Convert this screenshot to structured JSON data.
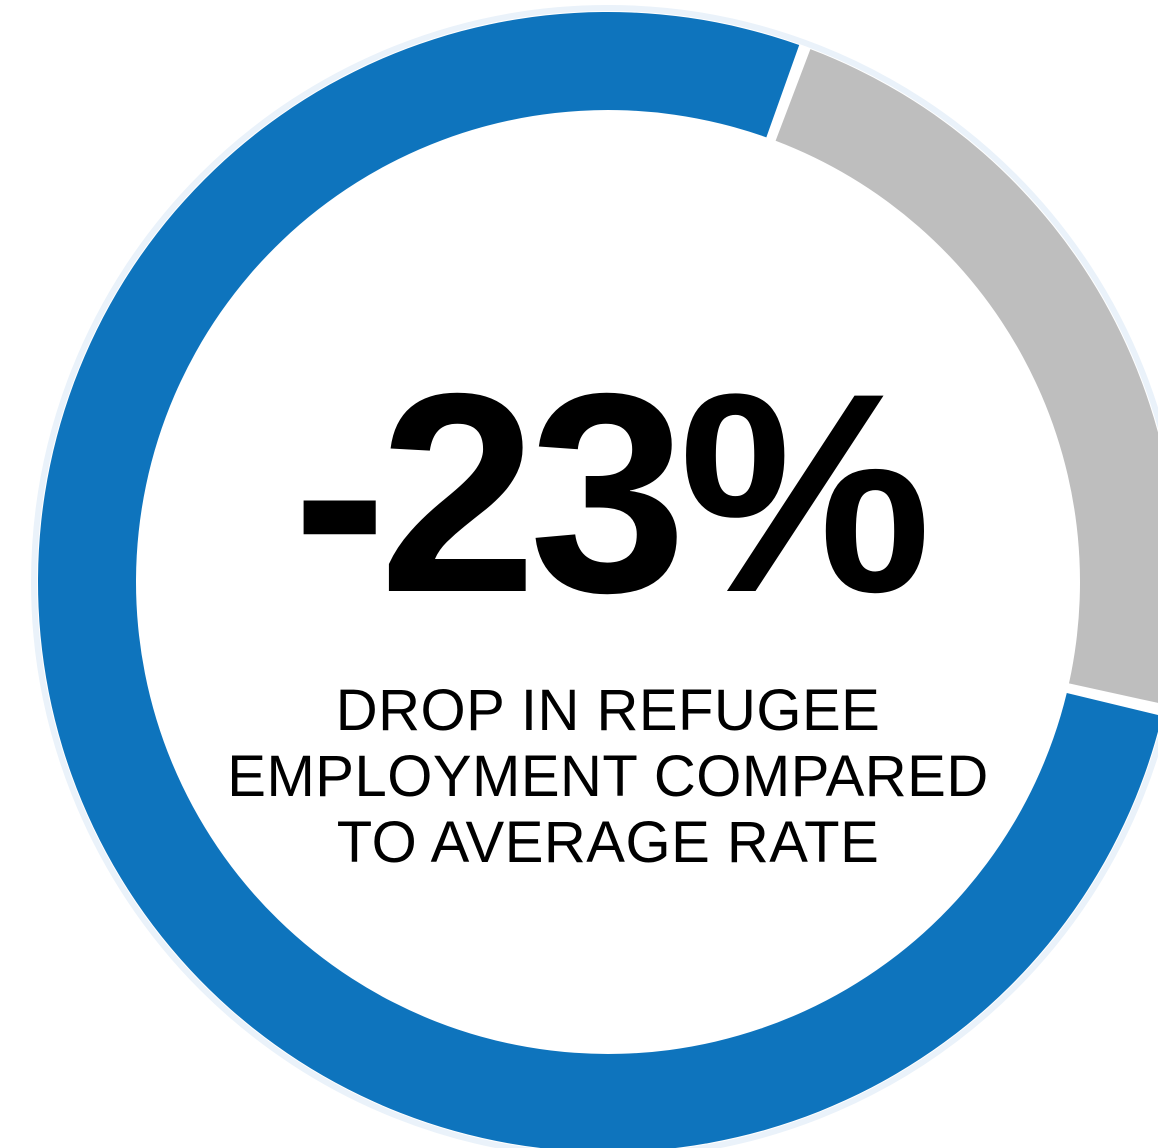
{
  "chart_data": {
    "type": "pie",
    "style": "donut",
    "slices": [
      {
        "label": "",
        "value": 77,
        "color": "#0E74BD"
      },
      {
        "label": "",
        "value": 23,
        "color": "#BEBEBE"
      }
    ],
    "start_angle_deg": 103,
    "highlight_value": "-23%",
    "caption_lines": [
      "DROP IN REFUGEE",
      "EMPLOYMENT COMPARED",
      "TO AVERAGE RATE"
    ]
  }
}
